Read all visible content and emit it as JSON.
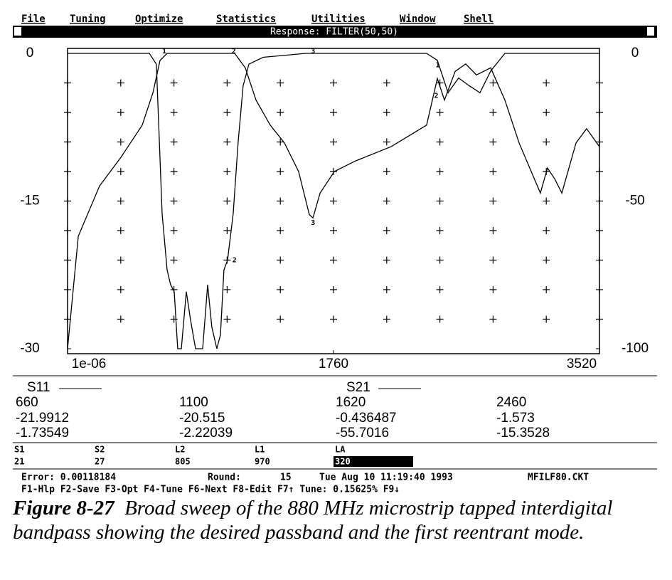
{
  "menu": [
    "File",
    "Tuning",
    "Optimize",
    "Statistics",
    "Utilities",
    "Window",
    "Shell"
  ],
  "window_title": "Response: FILTER(50,50)",
  "chart_data": {
    "type": "line",
    "xlim": [
      1e-06,
      3520
    ],
    "xticks": [
      {
        "value": 1e-06,
        "label": "1e-06"
      },
      1760,
      3520
    ],
    "ylim": [
      -30,
      0
    ],
    "yticks": [
      0,
      -15,
      -30
    ],
    "y2lim": [
      -100,
      0
    ],
    "y2ticks": [
      0,
      -50,
      -100
    ],
    "grid": true,
    "series": [
      {
        "name": "S11",
        "color": "#000000",
        "x": [
          1e-06,
          541,
          588,
          626,
          659,
          682,
          706,
          729,
          753,
          786,
          814,
          847,
          894,
          927,
          955,
          988,
          1012,
          1035,
          1059,
          1096,
          1129,
          1162,
          1200,
          1294,
          1576,
          2376,
          2447,
          2518,
          2588,
          2659,
          2729,
          2800,
          2894,
          3520
        ],
        "values": [
          0,
          0,
          -1.1,
          -16.3,
          -22.0,
          -23.5,
          -24.2,
          -30,
          -30,
          -24.2,
          -27.1,
          -30,
          -30,
          -23.5,
          -27.8,
          -30,
          -28.6,
          -22.0,
          -21.0,
          -16.3,
          -9.0,
          -3.3,
          -1.1,
          -0.4,
          0,
          0,
          -0.7,
          -4.0,
          -2.5,
          -3.3,
          -4.0,
          -1.8,
          0,
          0
        ]
      },
      {
        "name": "S21",
        "color": "#000000",
        "axis": "y2",
        "x": [
          1e-06,
          71,
          212,
          353,
          494,
          565,
          612,
          659,
          1106,
          1176,
          1247,
          1341,
          1435,
          1529,
          1600,
          1624,
          1671,
          1765,
          1906,
          2141,
          2376,
          2447,
          2494,
          2565,
          2635,
          2706,
          2800,
          2894,
          2988,
          3129,
          3176,
          3224,
          3271,
          3365,
          3435,
          3520
        ],
        "values": [
          -100,
          -61.9,
          -44.9,
          -35.2,
          -24.3,
          -13.3,
          -2.4,
          0,
          0,
          -4.9,
          -15.8,
          -24.3,
          -30.3,
          -40,
          -54.6,
          -55.7,
          -47.3,
          -40,
          -36.4,
          -31.6,
          -24.3,
          -8.5,
          -15.8,
          -6.1,
          -3.6,
          -7.3,
          -4.9,
          -15.8,
          -30.3,
          -47.3,
          -38.8,
          -42.5,
          -47.3,
          -30.3,
          -25.5,
          -31.6
        ]
      }
    ],
    "annotations": [
      {
        "text": "1",
        "x": 640,
        "y": 0.2
      },
      {
        "text": "2",
        "x": 1100,
        "y": 0.2
      },
      {
        "text": "3",
        "x": 1625,
        "y": 0.2
      },
      {
        "text": "3",
        "x": 1625,
        "y": -17.2
      },
      {
        "text": "2",
        "x": 1105,
        "y": -21.0
      },
      {
        "text": "1",
        "x": 2450,
        "y": -1.2
      },
      {
        "text": "2",
        "x": 2440,
        "y": -4.3
      }
    ]
  },
  "readout": {
    "rows": [
      [
        660,
        1100,
        1620,
        2460
      ],
      [
        -21.9912,
        -20.515,
        -0.436487,
        -1.573
      ],
      [
        -1.73549,
        -2.22039,
        -55.7016,
        -15.3528
      ]
    ]
  },
  "parameters": [
    {
      "name": "S1",
      "value": 21
    },
    {
      "name": "S2",
      "value": 27
    },
    {
      "name": "L2",
      "value": 805
    },
    {
      "name": "L1",
      "value": 970
    },
    {
      "name": "LA",
      "value": 320
    }
  ],
  "status": {
    "error": "Error: 0.00118184",
    "round_label": "Round:",
    "round": 15,
    "date": "Tue Aug 10 11:19:40 1993",
    "file": "MFILF80.CKT",
    "keys": "F1-Hlp F2-Save F3-Opt F4-Tune F6-Next F8-Edit F7↑ Tune: 0.15625% F9↓"
  },
  "caption": {
    "label": "Figure 8-27",
    "text": "Broad sweep of the 880 MHz microstrip tapped interdigital bandpass showing the desired passband and the first reentrant mode."
  }
}
